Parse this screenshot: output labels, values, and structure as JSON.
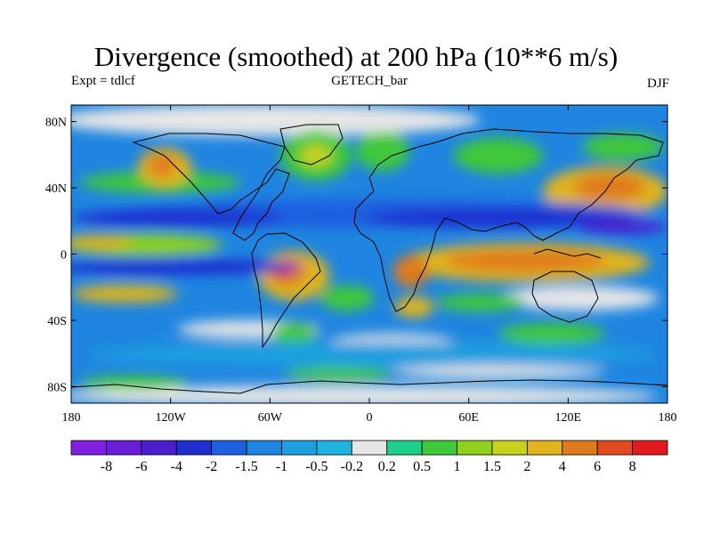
{
  "chart_data": {
    "type": "heatmap",
    "title": "Divergence (smoothed) at 200 hPa (10**6 m/s)",
    "subtitle_left": "Expt = tdlcf",
    "subtitle_center": "GETECH_bar",
    "subtitle_right": "DJF",
    "x_ticks": [
      "180",
      "120W",
      "60W",
      "0",
      "60E",
      "120E",
      "180"
    ],
    "y_ticks": [
      "80N",
      "40N",
      "0",
      "40S",
      "80S"
    ],
    "colorbar": {
      "labels": [
        "-8",
        "-6",
        "-4",
        "-2",
        "-1.5",
        "-1",
        "-0.5",
        "-0.2",
        "0.2",
        "0.5",
        "1",
        "1.5",
        "2",
        "4",
        "6",
        "8"
      ],
      "colors": [
        "#7f1fe0",
        "#6a1ed8",
        "#4b1fd0",
        "#1f2fd0",
        "#1f5fe0",
        "#1f85e0",
        "#1f9fe0",
        "#1fb4e0",
        "#e6e6e6",
        "#1fd08a",
        "#3fc83a",
        "#8fd21e",
        "#c8d21e",
        "#e0b41e",
        "#e07a1e",
        "#e04a1e",
        "#e01a1e"
      ]
    }
  }
}
